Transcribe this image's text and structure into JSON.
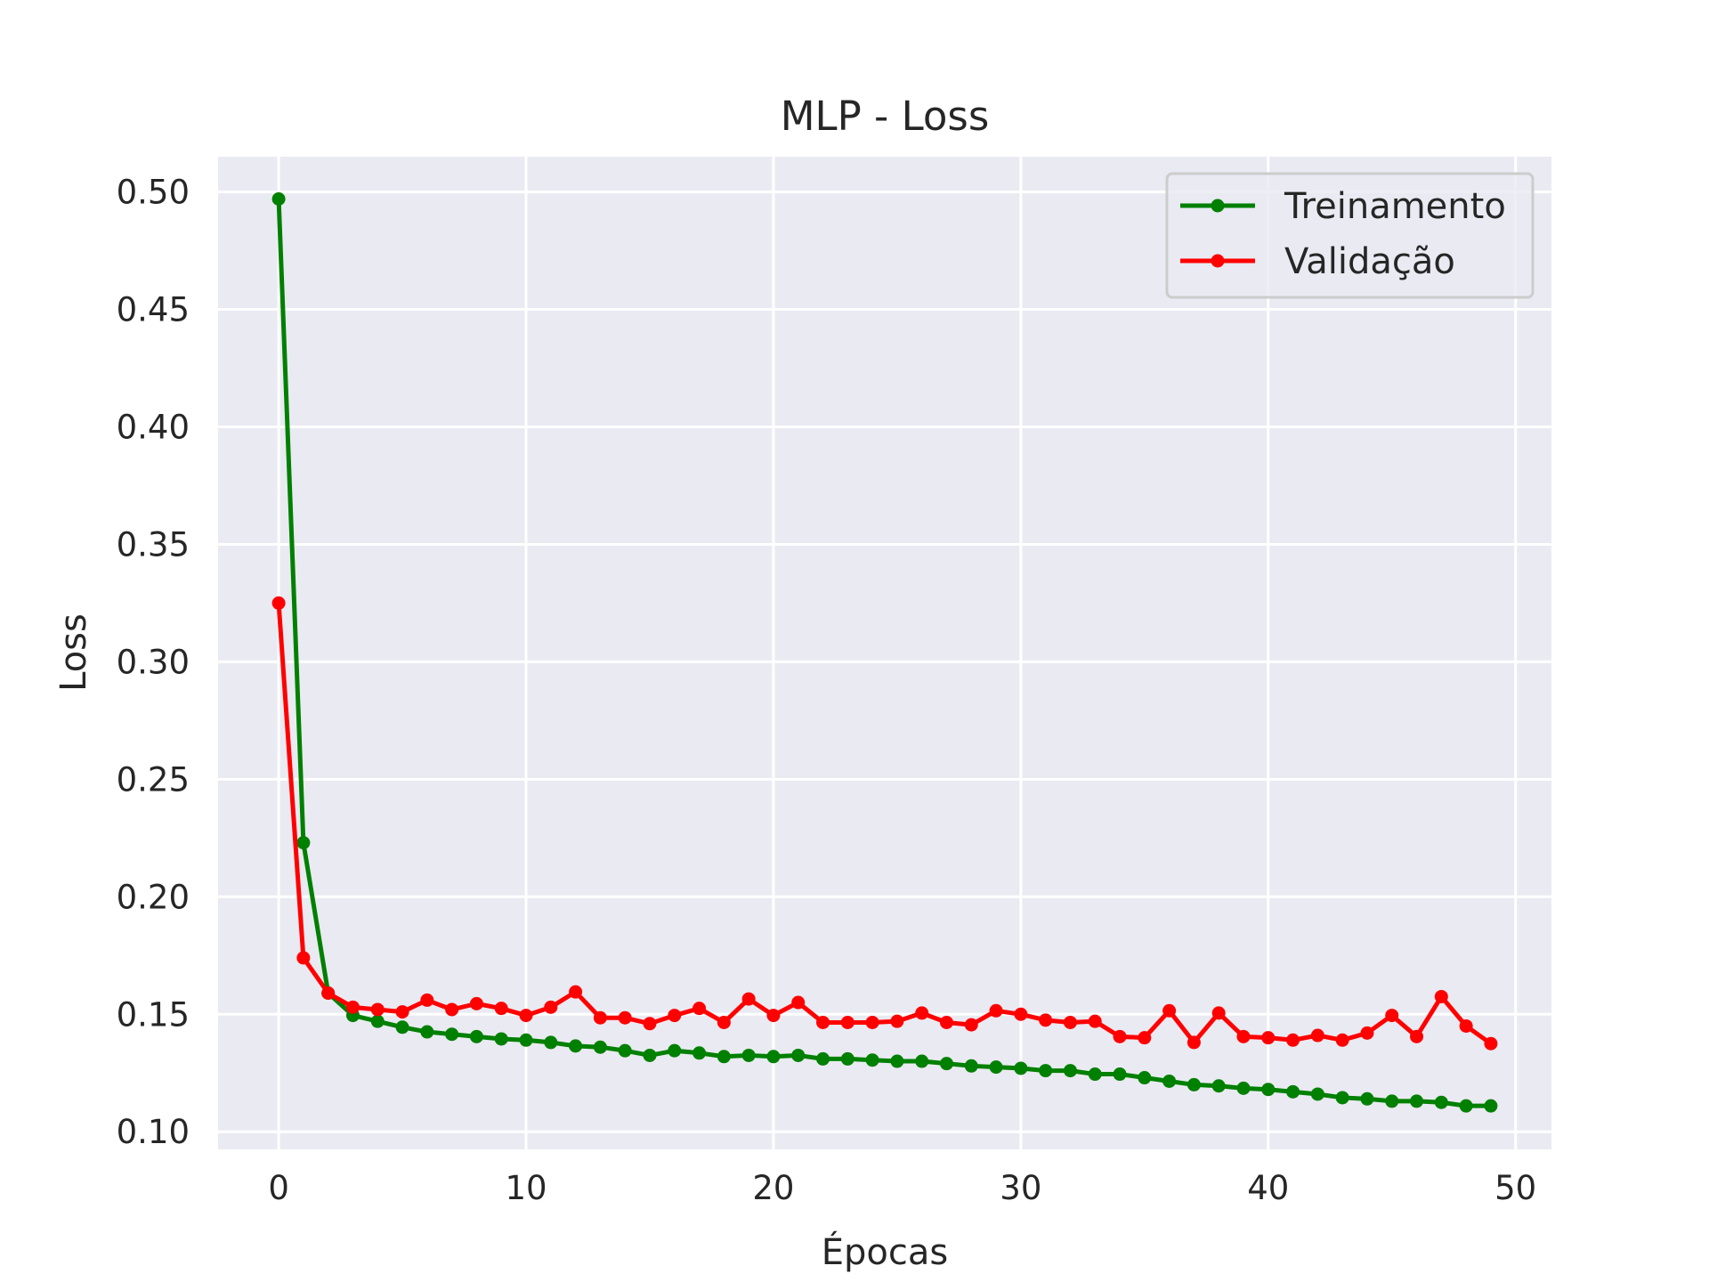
{
  "chart_data": {
    "type": "line",
    "title": "MLP - Loss",
    "xlabel": "Épocas",
    "ylabel": "Loss",
    "xlim": [
      -2.45,
      51.45
    ],
    "ylim": [
      0.0925,
      0.515
    ],
    "xticks": [
      0,
      10,
      20,
      30,
      40,
      50
    ],
    "yticks": [
      0.1,
      0.15,
      0.2,
      0.25,
      0.3,
      0.35,
      0.4,
      0.45,
      0.5
    ],
    "xtick_labels": [
      "0",
      "10",
      "20",
      "30",
      "40",
      "50"
    ],
    "ytick_labels": [
      "0.10",
      "0.15",
      "0.20",
      "0.25",
      "0.30",
      "0.35",
      "0.40",
      "0.45",
      "0.50"
    ],
    "grid": true,
    "legend_position": "top-right",
    "x": [
      0,
      1,
      2,
      3,
      4,
      5,
      6,
      7,
      8,
      9,
      10,
      11,
      12,
      13,
      14,
      15,
      16,
      17,
      18,
      19,
      20,
      21,
      22,
      23,
      24,
      25,
      26,
      27,
      28,
      29,
      30,
      31,
      32,
      33,
      34,
      35,
      36,
      37,
      38,
      39,
      40,
      41,
      42,
      43,
      44,
      45,
      46,
      47,
      48,
      49
    ],
    "series": [
      {
        "name": "Treinamento",
        "color": "#008000",
        "values": [
          0.497,
          0.223,
          0.159,
          0.1495,
          0.147,
          0.1445,
          0.1425,
          0.1415,
          0.1405,
          0.1395,
          0.139,
          0.138,
          0.1365,
          0.136,
          0.1345,
          0.1325,
          0.1345,
          0.1335,
          0.132,
          0.1325,
          0.132,
          0.1325,
          0.131,
          0.131,
          0.1305,
          0.13,
          0.13,
          0.129,
          0.128,
          0.1275,
          0.127,
          0.126,
          0.126,
          0.1245,
          0.1245,
          0.123,
          0.1215,
          0.12,
          0.1195,
          0.1185,
          0.118,
          0.117,
          0.116,
          0.1145,
          0.114,
          0.113,
          0.113,
          0.1125,
          0.111,
          0.111
        ]
      },
      {
        "name": "Validação",
        "color": "#ff0000",
        "values": [
          0.325,
          0.174,
          0.159,
          0.153,
          0.152,
          0.151,
          0.156,
          0.152,
          0.1545,
          0.1525,
          0.1495,
          0.153,
          0.1595,
          0.1485,
          0.1485,
          0.146,
          0.1495,
          0.1525,
          0.1465,
          0.1565,
          0.1495,
          0.155,
          0.1465,
          0.1465,
          0.1465,
          0.147,
          0.1505,
          0.1465,
          0.1455,
          0.1515,
          0.15,
          0.1475,
          0.1465,
          0.147,
          0.1405,
          0.14,
          0.1515,
          0.138,
          0.1505,
          0.1405,
          0.14,
          0.139,
          0.141,
          0.139,
          0.142,
          0.1495,
          0.1405,
          0.1575,
          0.145,
          0.1375
        ]
      }
    ]
  }
}
